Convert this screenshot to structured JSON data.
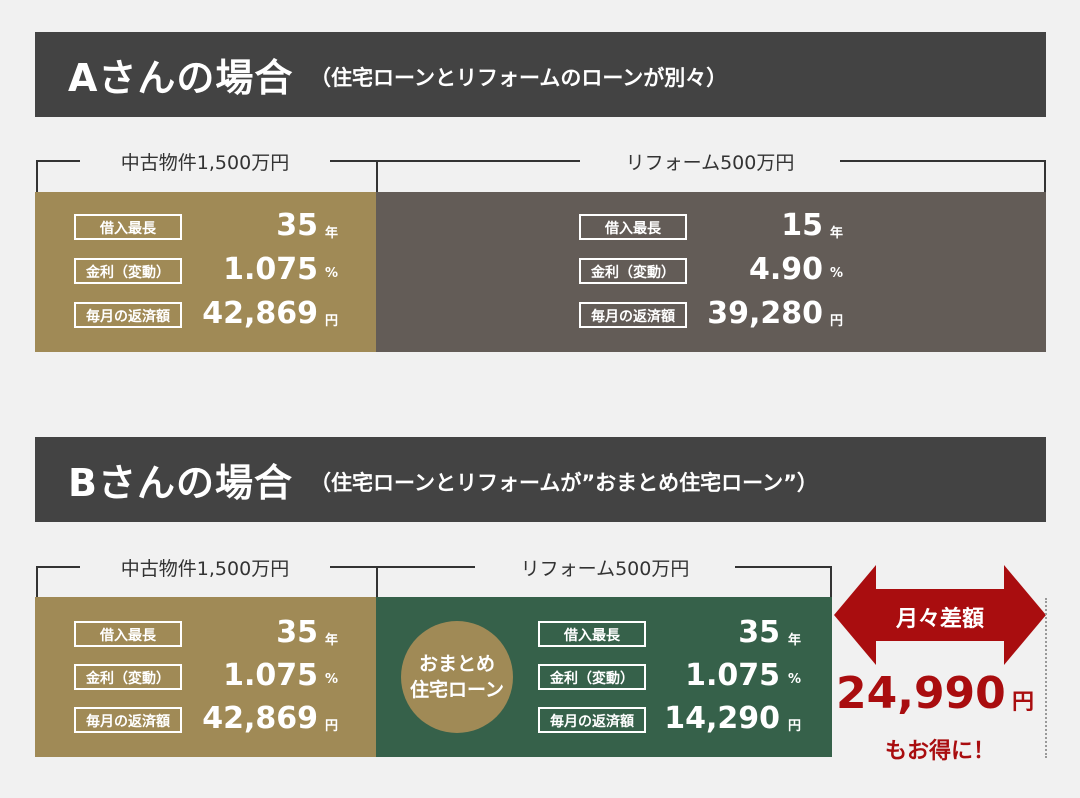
{
  "section_a": {
    "title": "Aさんの場合",
    "subtitle": "（住宅ローンとリフォームのローンが別々）",
    "left_label": "中古物件1,500万円",
    "right_label": "リフォーム500万円",
    "left_rows": [
      {
        "label": "借入最長",
        "value": "35",
        "unit": "年"
      },
      {
        "label": "金利（変動）",
        "value": "1.075",
        "unit": "%"
      },
      {
        "label": "毎月の返済額",
        "value": "42,869",
        "unit": "円"
      }
    ],
    "right_rows": [
      {
        "label": "借入最長",
        "value": "15",
        "unit": "年"
      },
      {
        "label": "金利（変動）",
        "value": "4.90",
        "unit": "%"
      },
      {
        "label": "毎月の返済額",
        "value": "39,280",
        "unit": "円"
      }
    ]
  },
  "section_b": {
    "title": "Bさんの場合",
    "subtitle": "（住宅ローンとリフォームが”おまとめ住宅ローン”）",
    "left_label": "中古物件1,500万円",
    "right_label": "リフォーム500万円",
    "circle_line1": "おまとめ",
    "circle_line2": "住宅ローン",
    "left_rows": [
      {
        "label": "借入最長",
        "value": "35",
        "unit": "年"
      },
      {
        "label": "金利（変動）",
        "value": "1.075",
        "unit": "%"
      },
      {
        "label": "毎月の返済額",
        "value": "42,869",
        "unit": "円"
      }
    ],
    "right_rows": [
      {
        "label": "借入最長",
        "value": "35",
        "unit": "年"
      },
      {
        "label": "金利（変動）",
        "value": "1.075",
        "unit": "%"
      },
      {
        "label": "毎月の返済額",
        "value": "14,290",
        "unit": "円"
      }
    ]
  },
  "difference": {
    "label": "月々差額",
    "value": "24,990",
    "unit": "円",
    "note": "もお得に！"
  },
  "colors": {
    "banner": "#434343",
    "tan": "#a08a56",
    "gray": "#635c57",
    "green": "#36614a",
    "accent_red": "#a90d0f"
  }
}
